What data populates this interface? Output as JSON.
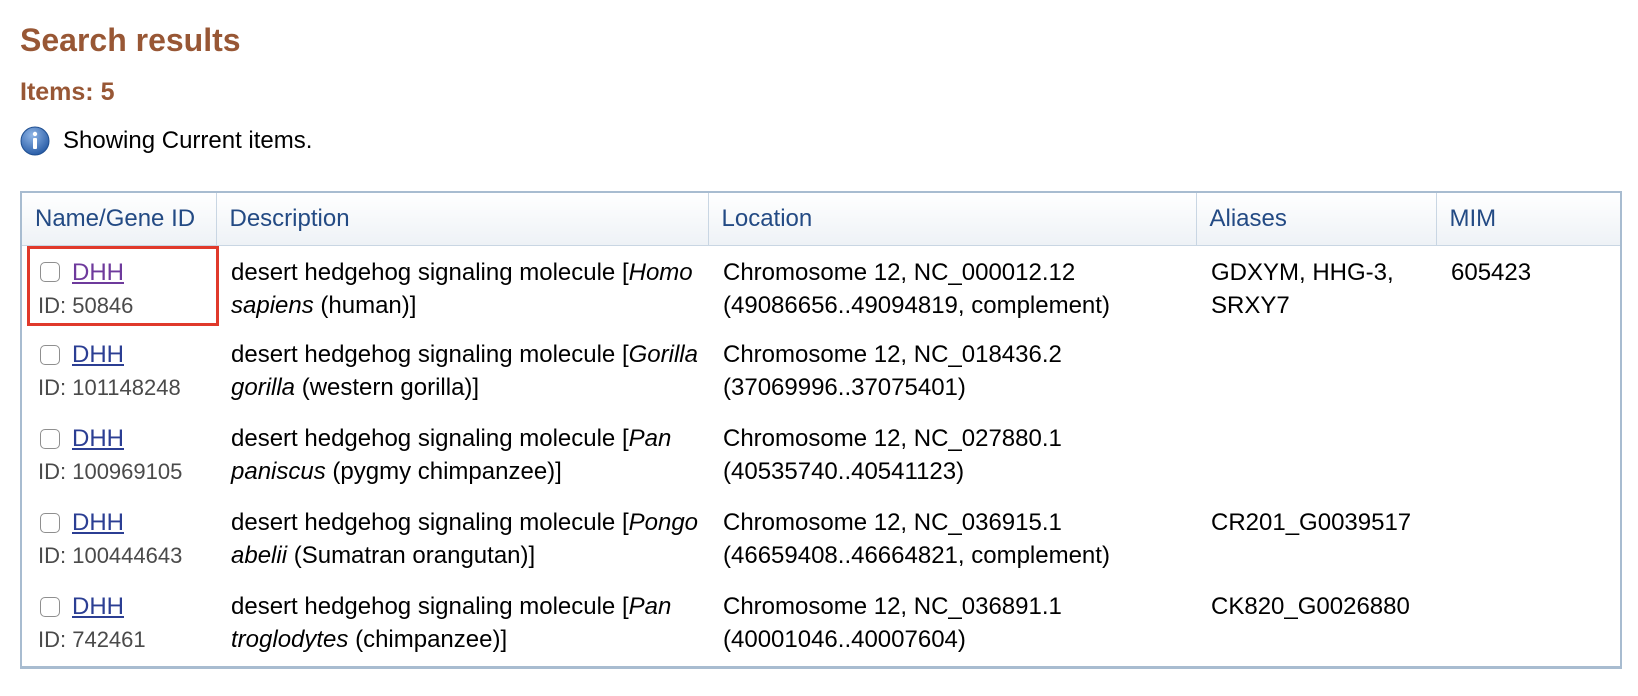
{
  "page": {
    "title": "Search results",
    "items_count": "Items: 5",
    "info_text": "Showing Current items."
  },
  "icons": {
    "info": "info-icon"
  },
  "colors": {
    "title": "#985735",
    "header_text": "#234a84",
    "link": "#2b3e93",
    "visited_link": "#6e3a9c",
    "highlight": "#e0392b"
  },
  "table": {
    "columns": [
      "Name/Gene ID",
      "Description",
      "Location",
      "Aliases",
      "MIM"
    ],
    "rows": [
      {
        "name": "DHH",
        "gene_id": "ID: 50846",
        "desc_prefix": "desert hedgehog signaling molecule [",
        "species": "Homo sapiens",
        "desc_suffix": " (human)]",
        "location_1": "Chromosome 12, NC_000012.12",
        "location_2": "(49086656..49094819, complement)",
        "aliases": "GDXYM, HHG-3, SRXY7",
        "mim": "605423",
        "highlighted": true,
        "visited": true
      },
      {
        "name": "DHH",
        "gene_id": "ID: 101148248",
        "desc_prefix": "desert hedgehog signaling molecule [",
        "species": "Gorilla gorilla",
        "desc_suffix": " (western gorilla)]",
        "location_1": "Chromosome 12, NC_018436.2",
        "location_2": "(37069996..37075401)",
        "aliases": "",
        "mim": ""
      },
      {
        "name": "DHH",
        "gene_id": "ID: 100969105",
        "desc_prefix": "desert hedgehog signaling molecule [",
        "species": "Pan paniscus",
        "desc_suffix": " (pygmy chimpanzee)]",
        "location_1": "Chromosome 12, NC_027880.1",
        "location_2": "(40535740..40541123)",
        "aliases": "",
        "mim": ""
      },
      {
        "name": "DHH",
        "gene_id": "ID: 100444643",
        "desc_prefix": "desert hedgehog signaling molecule [",
        "species": "Pongo abelii",
        "desc_suffix": " (Sumatran orangutan)]",
        "location_1": "Chromosome 12, NC_036915.1",
        "location_2": "(46659408..46664821, complement)",
        "aliases": "CR201_G0039517",
        "mim": ""
      },
      {
        "name": "DHH",
        "gene_id": "ID: 742461",
        "desc_prefix": "desert hedgehog signaling molecule [",
        "species": "Pan troglodytes",
        "desc_suffix": " (chimpanzee)]",
        "location_1": "Chromosome 12, NC_036891.1",
        "location_2": "(40001046..40007604)",
        "aliases": "CK820_G0026880",
        "mim": ""
      }
    ]
  }
}
